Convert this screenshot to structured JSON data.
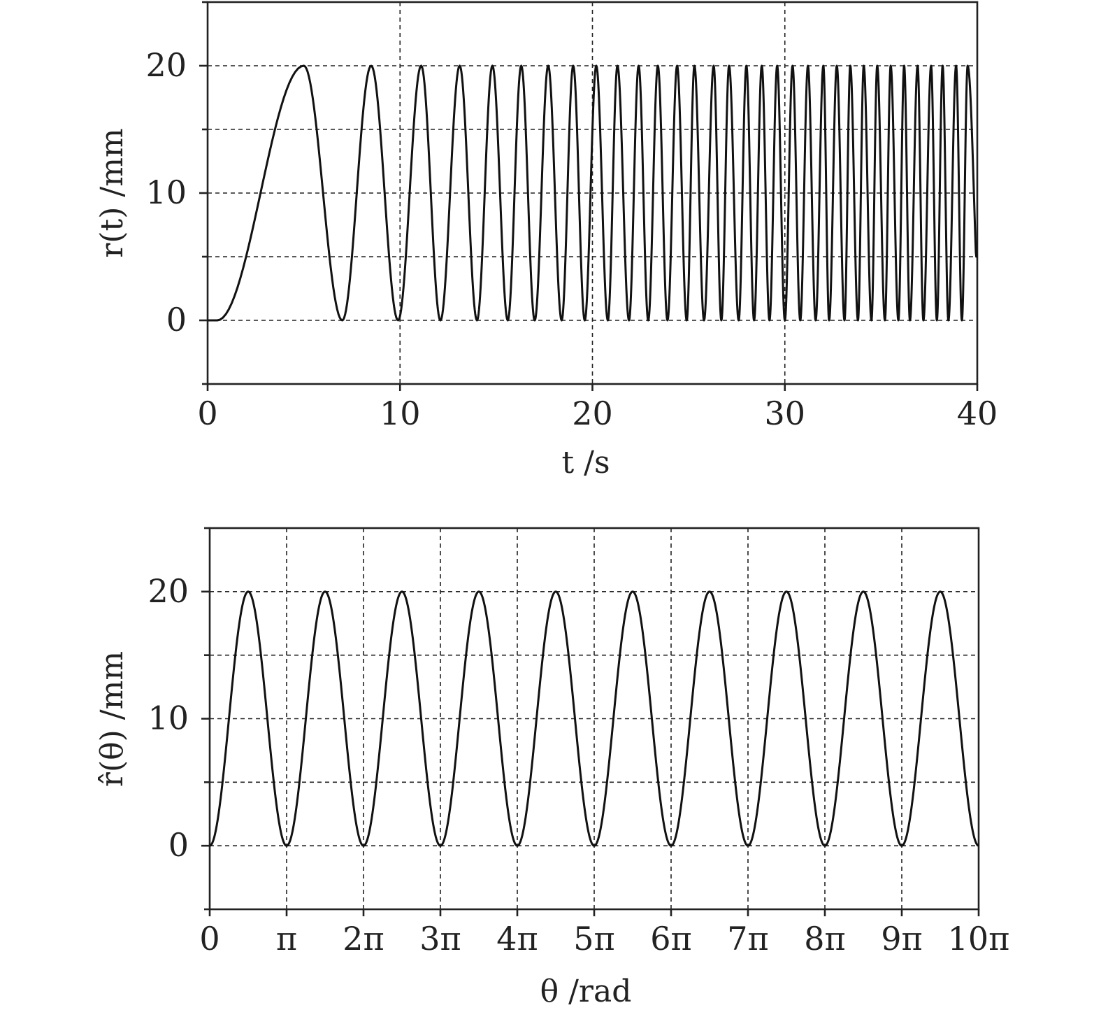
{
  "chart_data": [
    {
      "type": "line",
      "title": "",
      "xlabel": "t /s",
      "ylabel": "r(t) /mm",
      "xlim": [
        0,
        40
      ],
      "ylim": [
        -5,
        25
      ],
      "x_ticks": [
        0,
        10,
        20,
        30,
        40
      ],
      "x_tick_labels": [
        "0",
        "10",
        "20",
        "30",
        "40"
      ],
      "y_ticks": [
        0,
        10,
        20
      ],
      "y_tick_labels": [
        "0",
        "10",
        "20"
      ],
      "y_minor_ticks": [
        -5,
        5,
        15,
        25
      ],
      "grid": true,
      "series": [
        {
          "description_of_shape": "chirp: flat at 0 until t≈1, peak 20 at t≈5, then oscillates between 0 and 20 with increasing frequency",
          "peaks_x": [
            5.0,
            8.5,
            11.1,
            13.1,
            14.8,
            16.3,
            17.7,
            19.0,
            20.2,
            21.3,
            22.4,
            23.4,
            24.4,
            25.3,
            26.3,
            27.1,
            28.0,
            28.8,
            29.6,
            30.4,
            31.2,
            32.0,
            32.7,
            33.4,
            34.1,
            34.8,
            35.5,
            36.2,
            36.9,
            37.6,
            38.2,
            38.9,
            39.5
          ],
          "troughs_x": [
            0.5,
            7.0,
            9.9,
            12.1,
            14.0,
            15.6,
            17.0,
            18.4,
            19.6,
            20.8,
            21.9,
            22.9,
            23.9,
            24.9,
            25.8,
            26.7,
            27.6,
            28.4,
            29.2,
            30.0,
            30.8,
            31.6,
            32.3,
            33.1,
            33.8,
            34.5,
            35.2,
            35.9,
            36.5,
            37.2,
            37.9,
            38.5,
            39.2
          ],
          "y_min": 0,
          "y_max": 20,
          "x_end": 40,
          "y_end": 5
        }
      ]
    },
    {
      "type": "line",
      "title": "",
      "xlabel": "θ /rad",
      "ylabel": "r̂(θ) /mm",
      "xlim_over_pi": [
        0,
        10
      ],
      "ylim": [
        -5,
        25
      ],
      "x_ticks_over_pi": [
        0,
        1,
        2,
        3,
        4,
        5,
        6,
        7,
        8,
        9,
        10
      ],
      "x_tick_labels": [
        "0",
        "π",
        "2π",
        "3π",
        "4π",
        "5π",
        "6π",
        "7π",
        "8π",
        "9π",
        "10π"
      ],
      "y_ticks": [
        0,
        10,
        20
      ],
      "y_tick_labels": [
        "0",
        "10",
        "20"
      ],
      "y_minor_ticks": [
        -5,
        5,
        15,
        25
      ],
      "grid": true,
      "series": [
        {
          "formula": "r̂(θ) = 10(1 − cos 2θ)",
          "amplitude": 10,
          "offset": 10
        }
      ]
    }
  ]
}
